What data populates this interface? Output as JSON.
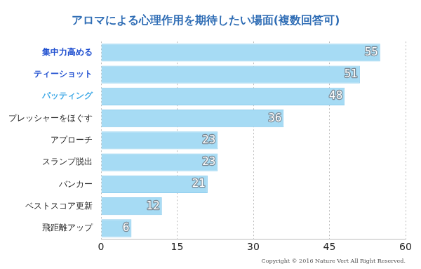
{
  "chart_data": {
    "type": "bar",
    "orientation": "horizontal",
    "title": "アロマによる心理作用を期待したい場面(複数回答可)",
    "categories": [
      "集中力高める",
      "ティーショット",
      "パッティング",
      "プレッシャーをほぐす",
      "アプローチ",
      "スランプ脱出",
      "バンカー",
      "ベストスコア更新",
      "飛距離アップ"
    ],
    "values": [
      55,
      51,
      48,
      36,
      23,
      23,
      21,
      12,
      6
    ],
    "color": "#a6dbf4",
    "xlim": [
      0,
      60
    ],
    "xticks": [
      0,
      15,
      30,
      45,
      60
    ],
    "grid": true,
    "data_labels": true,
    "annotations": [
      "Copyright © 2016 Nature Vert All Right Reserved."
    ]
  }
}
